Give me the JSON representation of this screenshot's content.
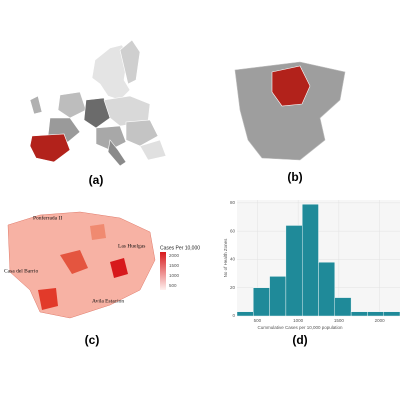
{
  "panels": [
    "(a)",
    "(b)",
    "(c)",
    "(d)"
  ],
  "map_c": {
    "labels": [
      "Ponferrada II",
      "Las Huelgas",
      "Casa del Barrio",
      "Avila Estacion"
    ],
    "legend": {
      "title": "Cases Per 10,000",
      "ticks": [
        "2000",
        "1500",
        "1000",
        "500"
      ]
    }
  },
  "chart_data": {
    "type": "histogram",
    "bins": [
      250,
      450,
      650,
      850,
      1050,
      1250,
      1450,
      1650,
      1850,
      2050,
      2250
    ],
    "values": [
      3,
      20,
      28,
      64,
      79,
      38,
      13,
      3,
      3,
      3
    ],
    "color": "#1f8a99",
    "xlabel": "Cummulative Cases per 10,000 population",
    "ylabel": "No of Health Zones",
    "xlim": [
      250,
      2250
    ],
    "xticks": [
      500,
      1000,
      1500,
      2000
    ],
    "ylim": [
      0,
      82
    ],
    "yticks": [
      0,
      20,
      40,
      60,
      80
    ],
    "grid": true
  }
}
